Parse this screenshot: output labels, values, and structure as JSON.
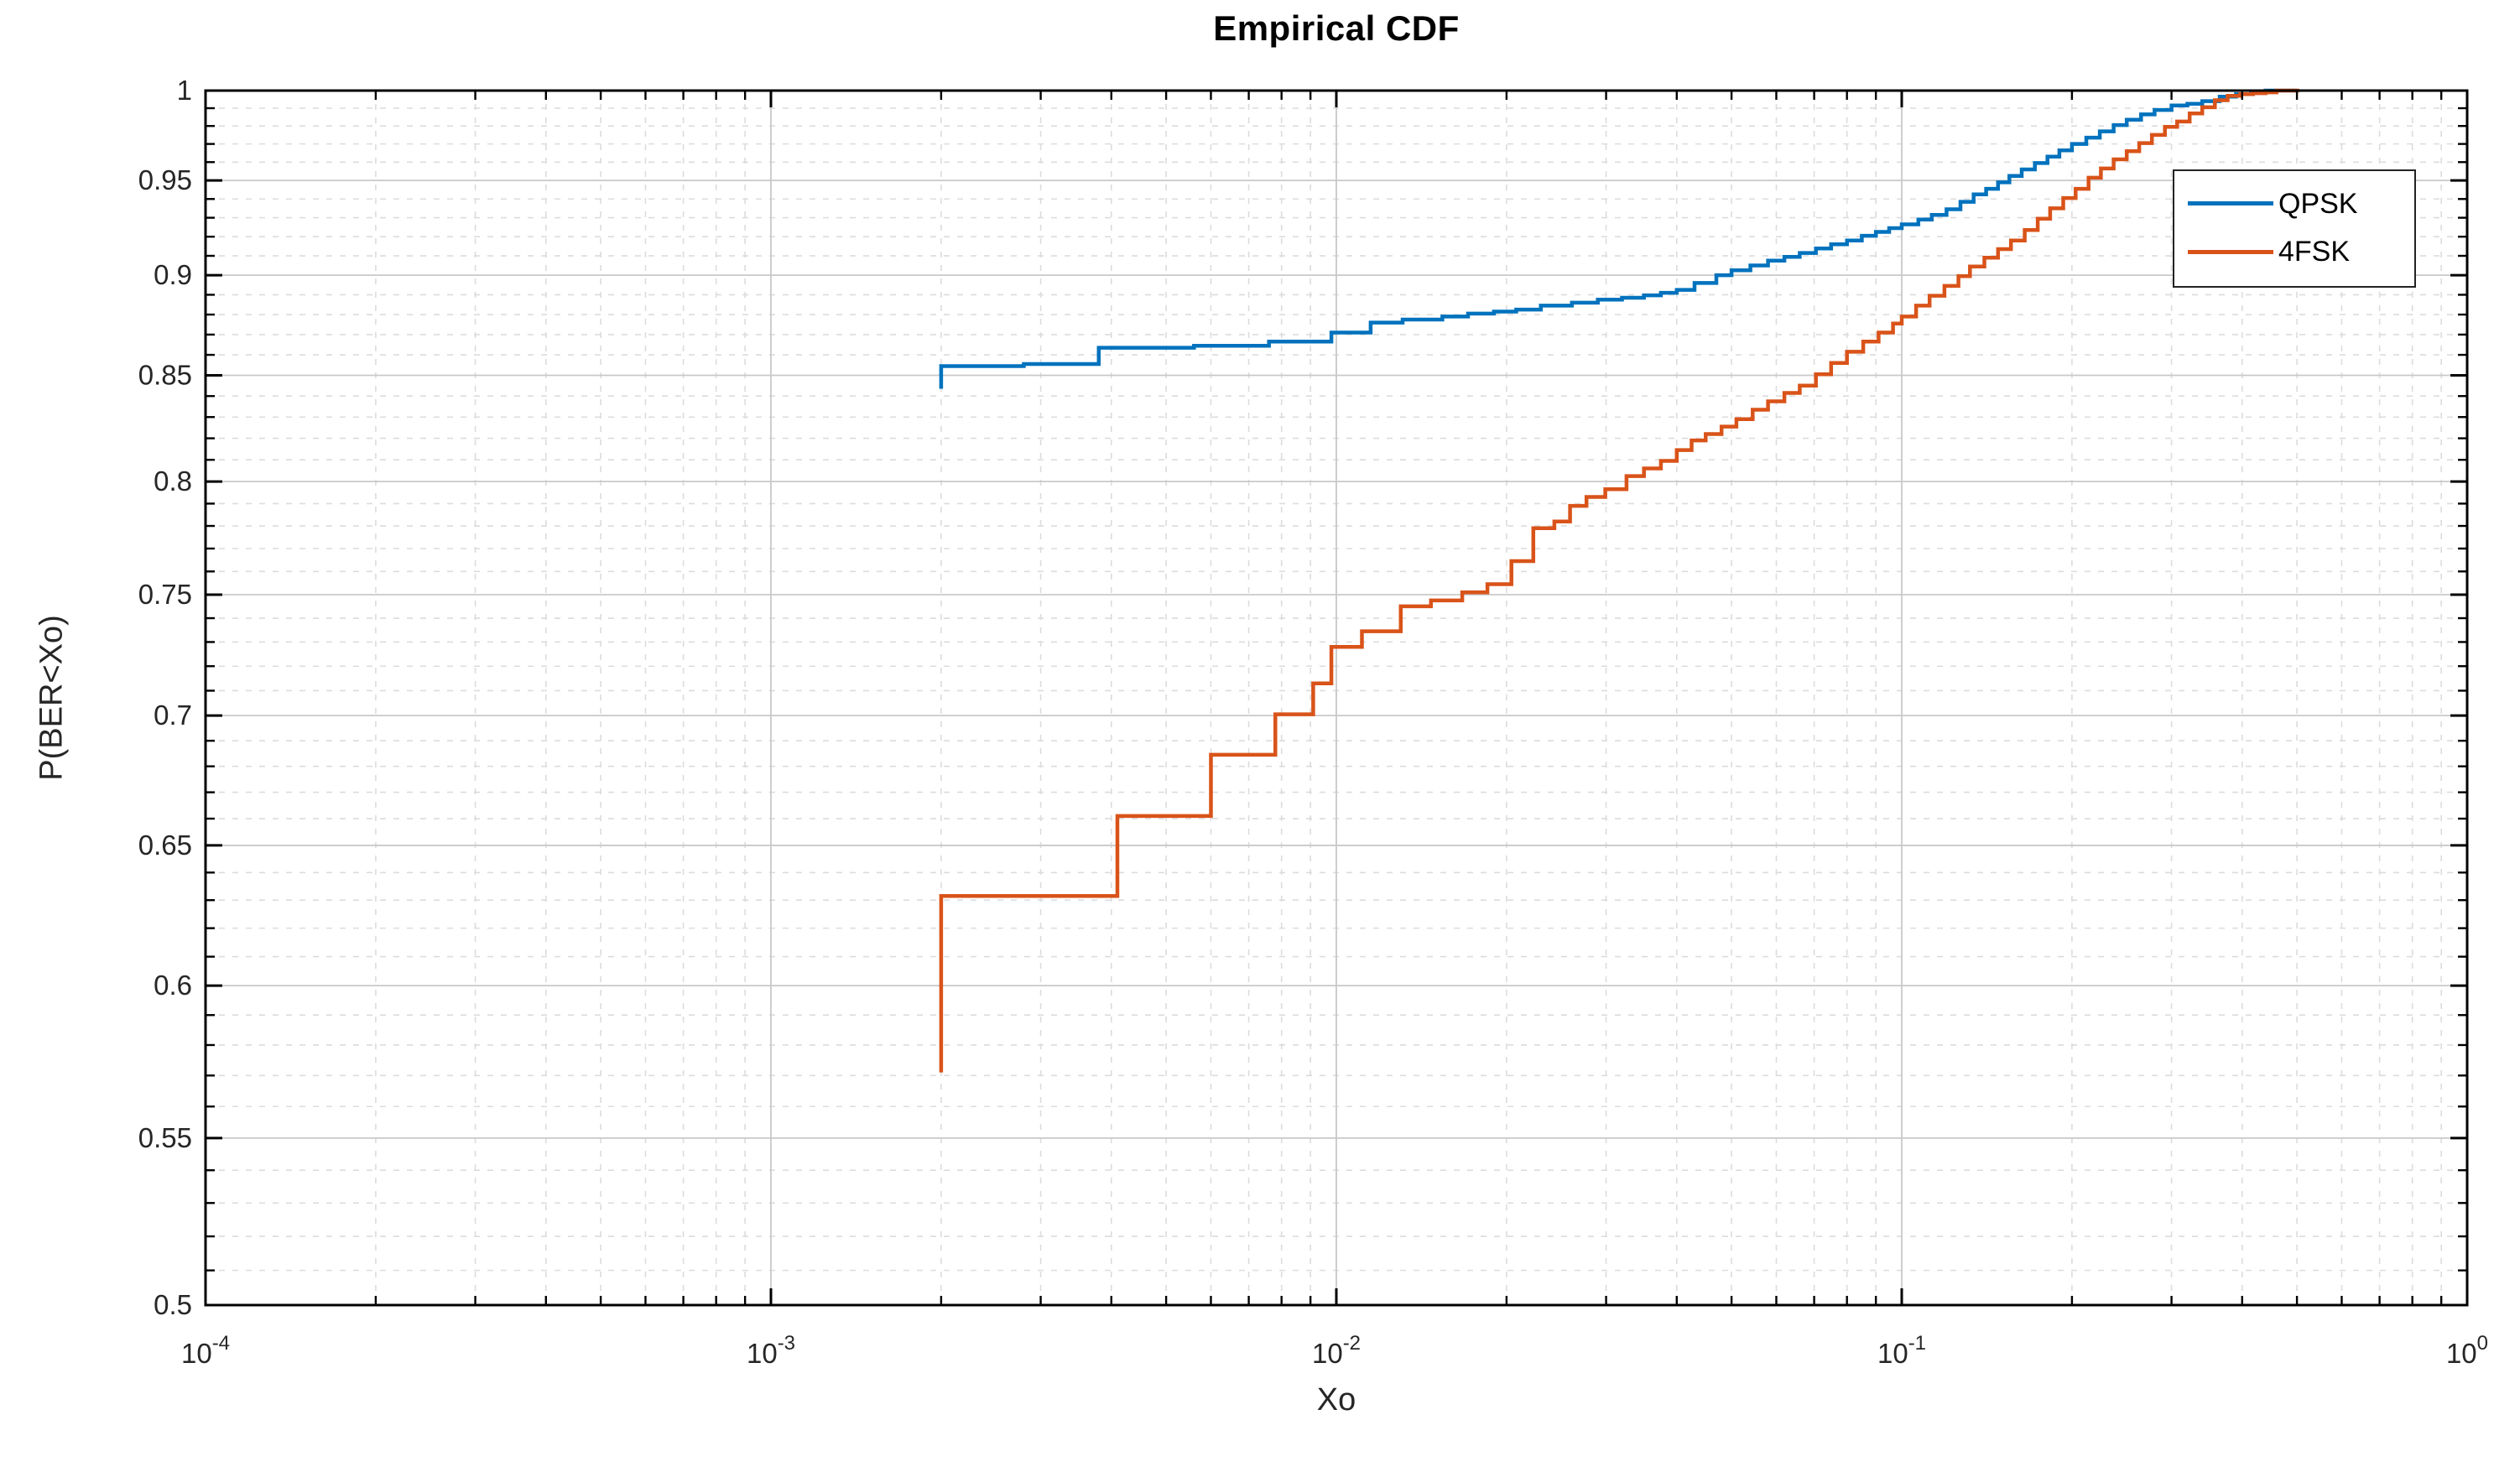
{
  "figure": {
    "title": "Empirical CDF",
    "x_label": "Xo",
    "y_label": "P(BER<Xo)",
    "background_color": "#ffffff"
  },
  "legend": {
    "entries": [
      {
        "label": "QPSK",
        "color": "#0072BD"
      },
      {
        "label": "4FSK",
        "color": "#D95319"
      }
    ]
  },
  "chart_data": {
    "type": "line",
    "subtype": "empirical-cdf-stairs",
    "title": "Empirical CDF",
    "xlabel": "Xo",
    "ylabel": "P(BER<Xo)",
    "x_scale": "log10",
    "y_scale": "log10",
    "xlim": [
      0.0001,
      1
    ],
    "ylim": [
      0.5,
      1
    ],
    "grid": true,
    "minor_grid": true,
    "legend_position": "upper-right-inside",
    "axis_color": "#000000",
    "tick_label_color": "#262626",
    "major_grid_color": "#c9c9c9",
    "minor_grid_color": "#dcdcdc",
    "x_ticks": [
      {
        "value": 0.0001,
        "base": "10",
        "exp": "-4"
      },
      {
        "value": 0.001,
        "base": "10",
        "exp": "-3"
      },
      {
        "value": 0.01,
        "base": "10",
        "exp": "-2"
      },
      {
        "value": 0.1,
        "base": "10",
        "exp": "-1"
      },
      {
        "value": 1,
        "base": "10",
        "exp": "0"
      }
    ],
    "y_ticks": [
      {
        "value": 1.0,
        "label": "1"
      },
      {
        "value": 0.95,
        "label": "0.95"
      },
      {
        "value": 0.9,
        "label": "0.9"
      },
      {
        "value": 0.85,
        "label": "0.85"
      },
      {
        "value": 0.8,
        "label": "0.8"
      },
      {
        "value": 0.75,
        "label": "0.75"
      },
      {
        "value": 0.7,
        "label": "0.7"
      },
      {
        "value": 0.65,
        "label": "0.65"
      },
      {
        "value": 0.6,
        "label": "0.6"
      },
      {
        "value": 0.55,
        "label": "0.55"
      },
      {
        "value": 0.5,
        "label": "0.5"
      }
    ],
    "series": [
      {
        "name": "QPSK",
        "color": "#0072BD",
        "line_width": 4.5,
        "start": [
          0.002,
          0.8435
        ],
        "end_x": 0.5,
        "points": [
          [
            0.002,
            0.8545
          ],
          [
            0.0028,
            0.8555
          ],
          [
            0.0038,
            0.8635
          ],
          [
            0.0056,
            0.8645
          ],
          [
            0.0076,
            0.8665
          ],
          [
            0.0098,
            0.871
          ],
          [
            0.0115,
            0.876
          ],
          [
            0.0131,
            0.8775
          ],
          [
            0.0154,
            0.879
          ],
          [
            0.0171,
            0.8805
          ],
          [
            0.019,
            0.8815
          ],
          [
            0.0208,
            0.8825
          ],
          [
            0.023,
            0.8845
          ],
          [
            0.0261,
            0.886
          ],
          [
            0.029,
            0.8875
          ],
          [
            0.032,
            0.8885
          ],
          [
            0.035,
            0.8897
          ],
          [
            0.0375,
            0.891
          ],
          [
            0.04,
            0.8925
          ],
          [
            0.043,
            0.896
          ],
          [
            0.047,
            0.9
          ],
          [
            0.05,
            0.9025
          ],
          [
            0.054,
            0.905
          ],
          [
            0.058,
            0.9075
          ],
          [
            0.062,
            0.9095
          ],
          [
            0.066,
            0.9115
          ],
          [
            0.0705,
            0.9138
          ],
          [
            0.075,
            0.916
          ],
          [
            0.08,
            0.918
          ],
          [
            0.085,
            0.9205
          ],
          [
            0.09,
            0.9225
          ],
          [
            0.095,
            0.9245
          ],
          [
            0.1,
            0.9265
          ],
          [
            0.107,
            0.929
          ],
          [
            0.113,
            0.9315
          ],
          [
            0.12,
            0.9345
          ],
          [
            0.127,
            0.9385
          ],
          [
            0.134,
            0.9425
          ],
          [
            0.141,
            0.9455
          ],
          [
            0.148,
            0.949
          ],
          [
            0.155,
            0.9525
          ],
          [
            0.163,
            0.956
          ],
          [
            0.172,
            0.9595
          ],
          [
            0.181,
            0.963
          ],
          [
            0.19,
            0.9665
          ],
          [
            0.2,
            0.97
          ],
          [
            0.212,
            0.9735
          ],
          [
            0.224,
            0.977
          ],
          [
            0.237,
            0.9805
          ],
          [
            0.25,
            0.9835
          ],
          [
            0.265,
            0.9865
          ],
          [
            0.28,
            0.989
          ],
          [
            0.3,
            0.9915
          ],
          [
            0.32,
            0.9925
          ],
          [
            0.34,
            0.994
          ],
          [
            0.365,
            0.9965
          ],
          [
            0.39,
            0.998
          ],
          [
            0.415,
            0.999
          ],
          [
            0.44,
            1.0
          ]
        ]
      },
      {
        "name": "4FSK",
        "color": "#D95319",
        "line_width": 4.5,
        "start": [
          0.002,
          0.571
        ],
        "end_x": 0.505,
        "points": [
          [
            0.002,
            0.6315
          ],
          [
            0.0041,
            0.661
          ],
          [
            0.006,
            0.6845
          ],
          [
            0.0078,
            0.7005
          ],
          [
            0.0091,
            0.713
          ],
          [
            0.0098,
            0.728
          ],
          [
            0.0111,
            0.7345
          ],
          [
            0.013,
            0.745
          ],
          [
            0.0147,
            0.7475
          ],
          [
            0.0167,
            0.751
          ],
          [
            0.0185,
            0.7545
          ],
          [
            0.0204,
            0.7645
          ],
          [
            0.0223,
            0.779
          ],
          [
            0.0243,
            0.782
          ],
          [
            0.0259,
            0.789
          ],
          [
            0.0277,
            0.793
          ],
          [
            0.0299,
            0.7965
          ],
          [
            0.0326,
            0.8025
          ],
          [
            0.035,
            0.806
          ],
          [
            0.0375,
            0.8095
          ],
          [
            0.04,
            0.8145
          ],
          [
            0.0425,
            0.819
          ],
          [
            0.045,
            0.822
          ],
          [
            0.048,
            0.8255
          ],
          [
            0.051,
            0.829
          ],
          [
            0.0545,
            0.8335
          ],
          [
            0.058,
            0.8375
          ],
          [
            0.062,
            0.8415
          ],
          [
            0.066,
            0.845
          ],
          [
            0.0705,
            0.8505
          ],
          [
            0.075,
            0.856
          ],
          [
            0.08,
            0.8615
          ],
          [
            0.0855,
            0.8665
          ],
          [
            0.091,
            0.871
          ],
          [
            0.0965,
            0.8755
          ],
          [
            0.1,
            0.879
          ],
          [
            0.106,
            0.8845
          ],
          [
            0.112,
            0.8895
          ],
          [
            0.119,
            0.8945
          ],
          [
            0.126,
            0.8995
          ],
          [
            0.132,
            0.9045
          ],
          [
            0.14,
            0.909
          ],
          [
            0.148,
            0.9135
          ],
          [
            0.156,
            0.918
          ],
          [
            0.165,
            0.9235
          ],
          [
            0.174,
            0.9295
          ],
          [
            0.183,
            0.935
          ],
          [
            0.193,
            0.9405
          ],
          [
            0.203,
            0.9455
          ],
          [
            0.214,
            0.9515
          ],
          [
            0.225,
            0.9565
          ],
          [
            0.237,
            0.9615
          ],
          [
            0.25,
            0.966
          ],
          [
            0.263,
            0.9705
          ],
          [
            0.277,
            0.975
          ],
          [
            0.292,
            0.9795
          ],
          [
            0.307,
            0.9825
          ],
          [
            0.323,
            0.987
          ],
          [
            0.34,
            0.9905
          ],
          [
            0.358,
            0.9945
          ],
          [
            0.377,
            0.997
          ],
          [
            0.397,
            0.998
          ],
          [
            0.418,
            0.9985
          ],
          [
            0.44,
            0.999
          ],
          [
            0.46,
            1.0
          ]
        ]
      }
    ]
  }
}
